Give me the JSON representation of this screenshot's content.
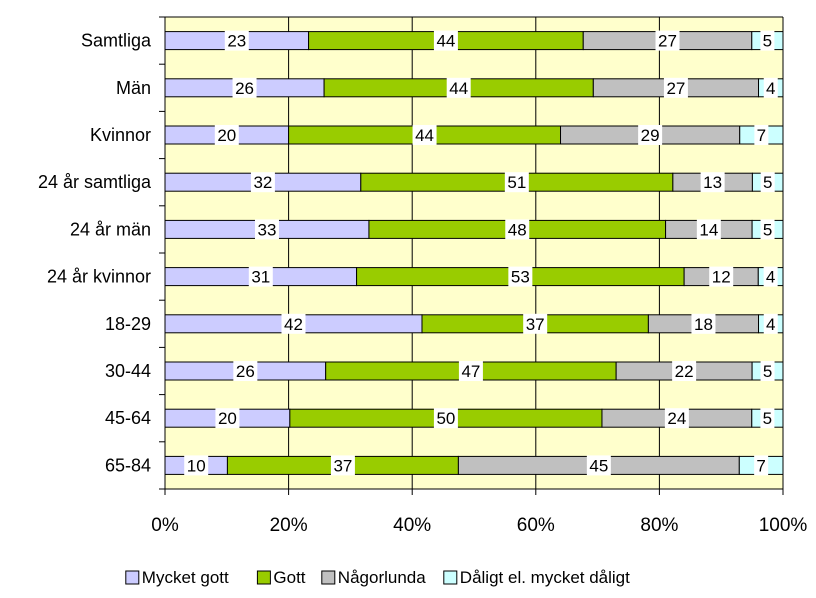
{
  "chart_data": {
    "type": "bar",
    "orientation": "horizontal",
    "stacked": "percent",
    "categories": [
      "Samtliga",
      "Män",
      "Kvinnor",
      "24 år samtliga",
      "24 år män",
      "24 år kvinnor",
      "18-29",
      "30-44",
      "45-64",
      "65-84"
    ],
    "series": [
      {
        "name": "Mycket gott",
        "color": "#ccccff",
        "values": [
          23,
          26,
          20,
          32,
          33,
          31,
          42,
          26,
          20,
          10
        ]
      },
      {
        "name": "Gott",
        "color": "#99cc00",
        "values": [
          44,
          44,
          44,
          51,
          48,
          53,
          37,
          47,
          50,
          37
        ]
      },
      {
        "name": "Någorlunda",
        "color": "#c0c0c0",
        "values": [
          27,
          27,
          29,
          13,
          14,
          12,
          18,
          22,
          24,
          45
        ]
      },
      {
        "name": "Dåligt el. mycket dåligt",
        "color": "#ccffff",
        "values": [
          5,
          4,
          7,
          5,
          5,
          4,
          4,
          5,
          5,
          7
        ]
      }
    ],
    "xlim": [
      0,
      100
    ],
    "xticks": [
      "0%",
      "20%",
      "40%",
      "60%",
      "80%",
      "100%"
    ],
    "grid": true,
    "legend": "bottom",
    "plot_background": "#ffffcc"
  }
}
